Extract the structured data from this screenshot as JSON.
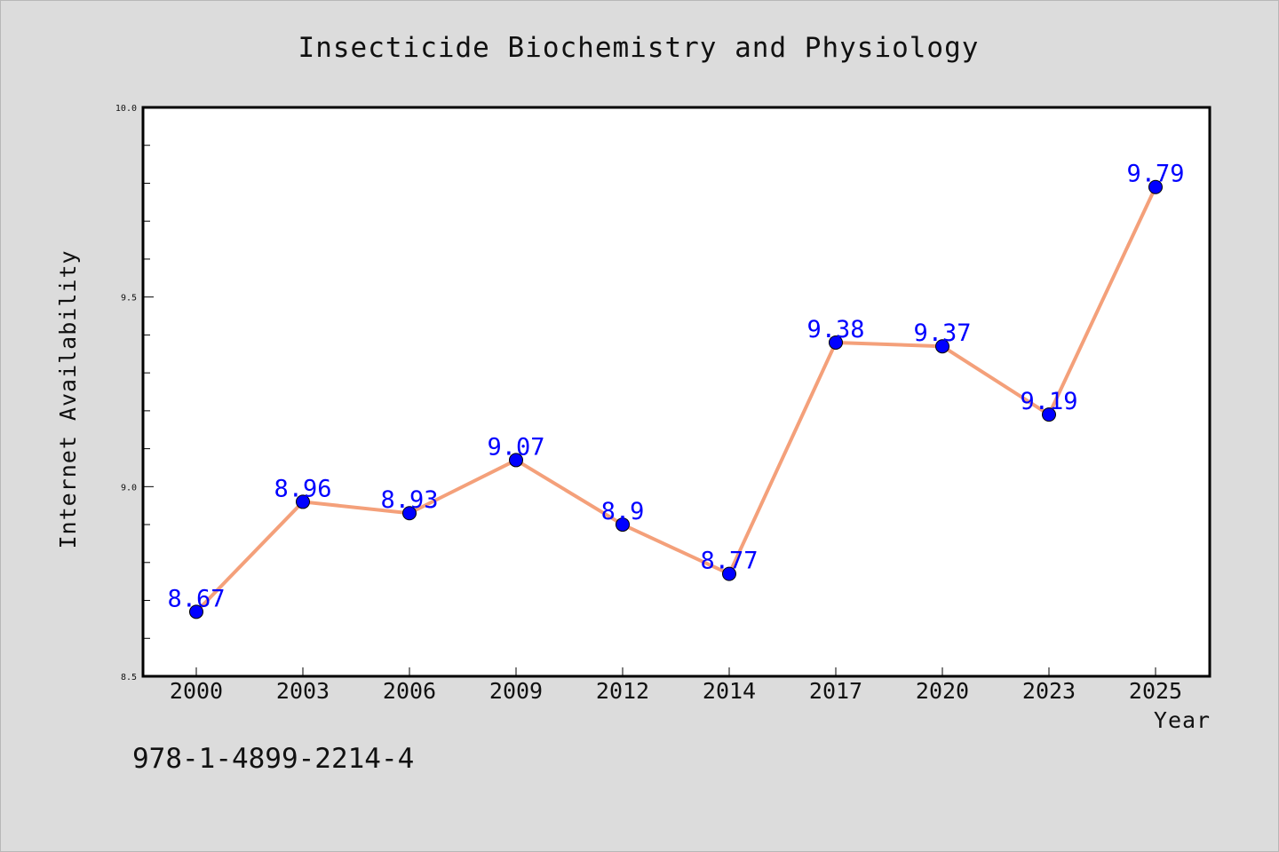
{
  "chart_data": {
    "type": "line",
    "title": "Insecticide Biochemistry and Physiology",
    "xlabel": "Year",
    "ylabel": "Internet Availability",
    "categories": [
      "2000",
      "2003",
      "2006",
      "2009",
      "2012",
      "2014",
      "2017",
      "2020",
      "2023",
      "2025"
    ],
    "values": [
      8.67,
      8.96,
      8.93,
      9.07,
      8.9,
      8.77,
      9.38,
      9.37,
      9.19,
      9.79
    ],
    "data_labels": [
      "8.67",
      "8.96",
      "8.93",
      "9.07",
      "8.9",
      "8.77",
      "9.38",
      "9.37",
      "9.19",
      "9.79"
    ],
    "ylim": [
      8.5,
      10.0
    ],
    "yticks": [
      "8.5",
      "9.0",
      "9.5",
      "10.0"
    ],
    "grid": false,
    "line_color": "#f4a07a",
    "marker_color": "#0000ff",
    "label_color": "#0000ff"
  },
  "annotation": "978-1-4899-2214-4"
}
